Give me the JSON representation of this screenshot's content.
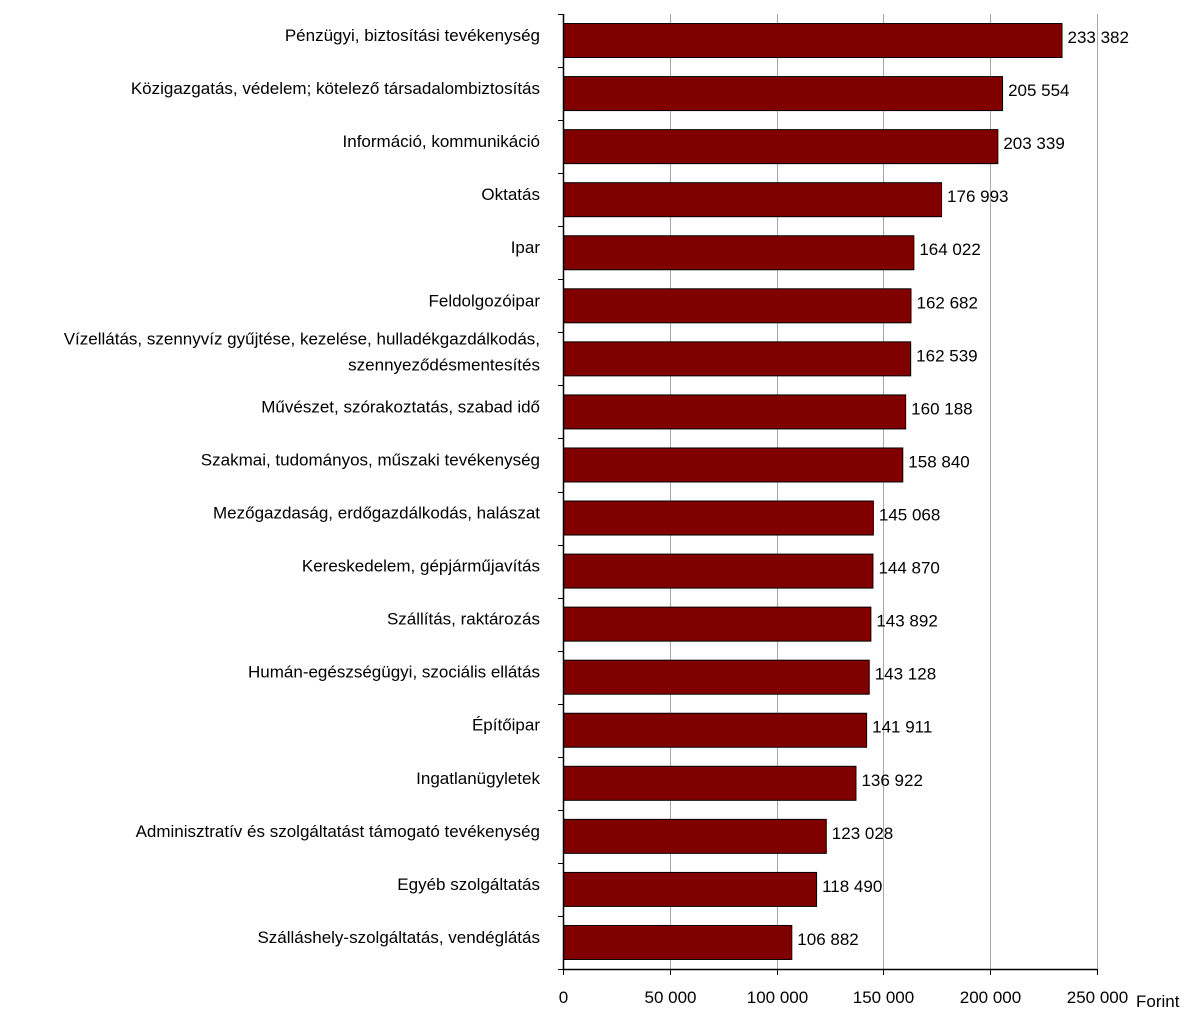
{
  "chart_data": {
    "type": "bar",
    "orientation": "horizontal",
    "categories": [
      "Pénzügyi, biztosítási tevékenység",
      "Közigazgatás, védelem; kötelező társadalombiztosítás",
      "Információ, kommunikáció",
      "Oktatás",
      "Ipar",
      "Feldolgozóipar",
      [
        "Vízellátás, szennyvíz gyűjtése, kezelése, hulladékgazdálkodás,",
        "szennyeződésmentesítés"
      ],
      "Művészet, szórakoztatás, szabad idő",
      "Szakmai, tudományos, műszaki tevékenység",
      "Mezőgazdaság, erdőgazdálkodás, halászat",
      "Kereskedelem, gépjárműjavítás",
      "Szállítás, raktározás",
      "Humán-egészségügyi, szociális ellátás",
      "Építőipar",
      "Ingatlanügyletek",
      "Adminisztratív és szolgáltatást támogató tevékenység",
      "Egyéb szolgáltatás",
      "Szálláshely-szolgáltatás, vendéglátás"
    ],
    "values": [
      233382,
      205554,
      203339,
      176993,
      164022,
      162682,
      162539,
      160188,
      158840,
      145068,
      144870,
      143892,
      143128,
      141911,
      136922,
      123028,
      118490,
      106882
    ],
    "data_labels": [
      "233 382",
      "205 554",
      "203 339",
      "176 993",
      "164 022",
      "162 682",
      "162 539",
      "160 188",
      "158 840",
      "145 068",
      "144 870",
      "143 892",
      "143 128",
      "141 911",
      "136 922",
      "123 028",
      "118 490",
      "106 882"
    ],
    "xlim": [
      0,
      250000
    ],
    "xticks": [
      0,
      50000,
      100000,
      150000,
      200000,
      250000
    ],
    "xtick_labels": [
      "0",
      "50 000",
      "100 000",
      "150 000",
      "200 000",
      "250 000"
    ],
    "x_unit": "Forint",
    "grid": "vertical",
    "colors": {
      "bar": "#800000",
      "bar_stroke": "#000000",
      "grid": "#a6a6a6"
    }
  }
}
